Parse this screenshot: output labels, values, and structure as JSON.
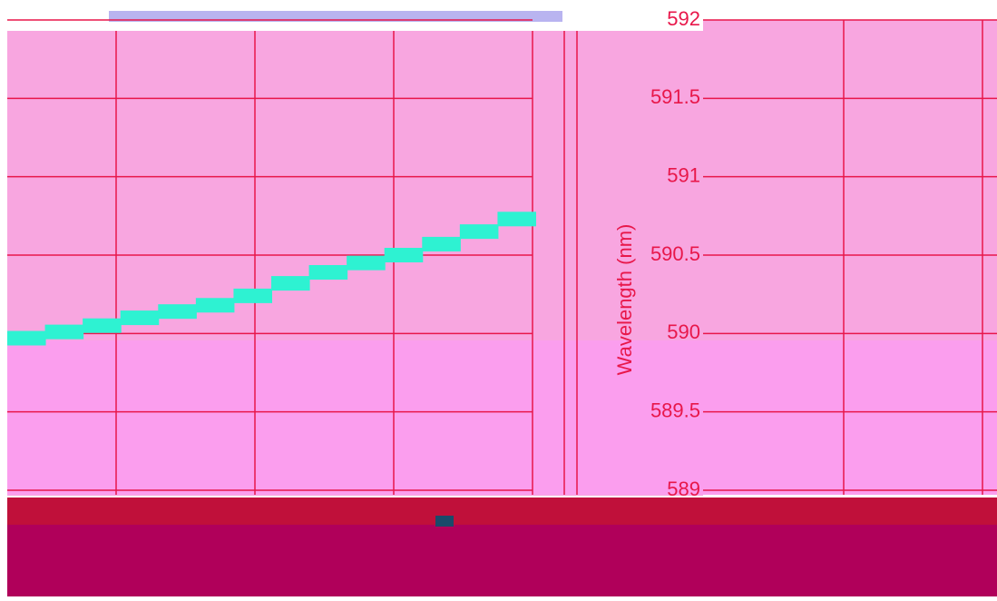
{
  "chart_data": {
    "type": "step",
    "ylabel": "Wavelength (nm)",
    "categories": [
      null,
      null,
      null,
      null,
      null,
      null,
      null,
      null,
      null,
      null,
      null,
      null,
      null,
      null
    ],
    "series": [
      {
        "color": "#2ef2d2",
        "values": [
          589.97,
          590.01,
          590.05,
          590.1,
          590.14,
          590.18,
          590.24,
          590.32,
          590.39,
          590.45,
          590.5,
          590.57,
          590.65,
          590.73
        ]
      }
    ],
    "ylim": [
      589,
      592
    ],
    "yticks": [
      589,
      589.5,
      590,
      590.5,
      591,
      591.5,
      592
    ],
    "grid": true
  }
}
